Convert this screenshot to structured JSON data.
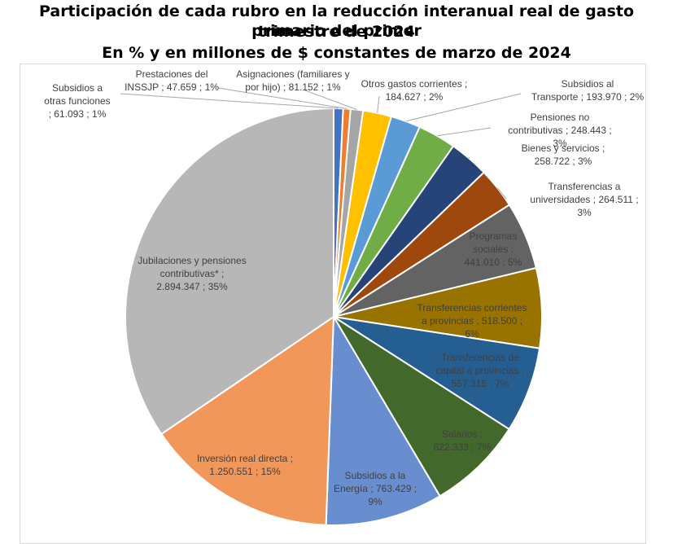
{
  "title_lines": [
    "Participación de cada rubro en la reducción interanual real de gasto primario del primer",
    "trimestre de 2024",
    "En % y en millones de $ constantes de marzo de 2024"
  ],
  "chart_data": {
    "type": "pie",
    "title": "Participación de cada rubro en la reducción interanual real de gasto primario del primer trimestre de 2024",
    "subtitle": "En % y en millones de $ constantes de marzo de 2024",
    "slices": [
      {
        "label": "Subsidios a otras funciones",
        "value": 61093,
        "value_text": "61.093",
        "percent": "1%",
        "color": "#4472c4"
      },
      {
        "label": "Prestaciones del INSSJP",
        "value": 47659,
        "value_text": "47.659",
        "percent": "1%",
        "color": "#ed7d31"
      },
      {
        "label": "Asignaciones (familiares y por hijo)",
        "value": 81152,
        "value_text": "81.152",
        "percent": "1%",
        "color": "#a5a5a5"
      },
      {
        "label": "Otros gastos corrientes",
        "value": 184627,
        "value_text": "184.627",
        "percent": "2%",
        "color": "#ffc000"
      },
      {
        "label": "Subsidios al Transporte",
        "value": 193970,
        "value_text": "193.970",
        "percent": "2%",
        "color": "#5b9bd5"
      },
      {
        "label": "Pensiones no contributivas",
        "value": 248443,
        "value_text": "248.443",
        "percent": "3%",
        "color": "#70ad47"
      },
      {
        "label": "Bienes y servicios",
        "value": 258722,
        "value_text": "258.722",
        "percent": "3%",
        "color": "#264478"
      },
      {
        "label": "Transferencias a universidades",
        "value": 264511,
        "value_text": "264.511",
        "percent": "3%",
        "color": "#9e480e"
      },
      {
        "label": "Programas sociales",
        "value": 441010,
        "value_text": "441.010",
        "percent": "5%",
        "color": "#636363"
      },
      {
        "label": "Transferencias corrientes a provincias",
        "value": 518500,
        "value_text": "518.500",
        "percent": "6%",
        "color": "#997300"
      },
      {
        "label": "Transferencias de capital a provincias",
        "value": 557315,
        "value_text": "557.315",
        "percent": "7%",
        "color": "#255e91"
      },
      {
        "label": "Salarios",
        "value": 622333,
        "value_text": "622.333",
        "percent": "7%",
        "color": "#43682b"
      },
      {
        "label": "Subsidios a la Energía",
        "value": 763429,
        "value_text": "763.429",
        "percent": "9%",
        "color": "#698ed0"
      },
      {
        "label": "Inversión real directa",
        "value": 1250551,
        "value_text": "1.250.551",
        "percent": "15%",
        "color": "#f1975a"
      },
      {
        "label": "Jubilaciones y pensiones contributivas*",
        "value": 2894347,
        "value_text": "2.894.347",
        "percent": "35%",
        "color": "#b7b7b7"
      }
    ],
    "data_label_lines": [
      [
        "Subsidios a",
        "otras funciones",
        "; 61.093 ; 1%"
      ],
      [
        "Prestaciones del",
        "INSSJP ; 47.659 ; 1%"
      ],
      [
        "Asignaciones (familiares y",
        "por hijo) ; 81.152 ; 1%"
      ],
      [
        "Otros gastos corrientes ;",
        "184.627 ; 2%"
      ],
      [
        "Subsidios al",
        "Transporte ; 193.970 ; 2%"
      ],
      [
        "Pensiones no",
        "contributivas ; 248.443 ;",
        "3%"
      ],
      [
        "Bienes y servicios ;",
        "258.722 ; 3%"
      ],
      [
        "Transferencias a",
        "universidades ; 264.511 ;",
        "3%"
      ],
      [
        "Programas",
        "sociales ;",
        "441.010 ; 5%"
      ],
      [
        "Transferencias corrientes",
        "a provincias ; 518.500 ;",
        "6%"
      ],
      [
        "Transferencias de",
        "capital a provincias ;",
        "557.315 ; 7%"
      ],
      [
        "Salarios ;",
        "622.333 ; 7%"
      ],
      [
        "Subsidios a la",
        "Energía ; 763.429 ;",
        "9%"
      ],
      [
        "Inversión real directa ;",
        "1.250.551 ; 15%"
      ],
      [
        "Jubilaciones y pensiones",
        "contributivas* ;",
        "2.894.347 ; 35%"
      ]
    ]
  }
}
